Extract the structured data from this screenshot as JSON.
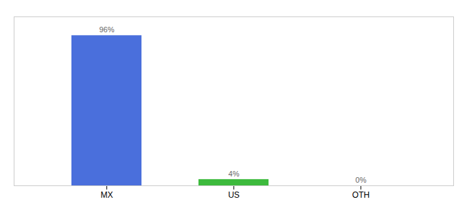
{
  "chart_data": {
    "type": "bar",
    "categories": [
      "MX",
      "US",
      "OTH"
    ],
    "values": [
      96,
      4,
      0
    ],
    "value_labels": [
      "96%",
      "4%",
      "0%"
    ],
    "colors": [
      "#4a6fdc",
      "#3dba3d",
      "#4a6fdc"
    ],
    "ylim": [
      0,
      108
    ],
    "data_labels": true,
    "tick_labels": "x"
  }
}
